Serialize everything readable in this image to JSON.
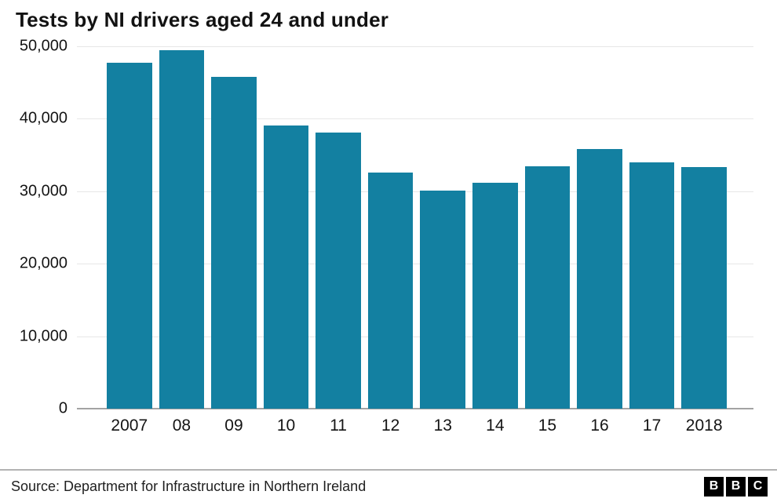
{
  "title": "Tests by NI drivers aged 24 and under",
  "source": "Source: Department for Infrastructure in Northern Ireland",
  "logo": {
    "letters": [
      "B",
      "B",
      "C"
    ]
  },
  "colors": {
    "bar": "#1380A1",
    "grid": "#e7e7e7",
    "baseline": "#a3a3a3",
    "text": "#141414"
  },
  "chart_data": {
    "type": "bar",
    "title": "Tests by NI drivers aged 24 and under",
    "categories": [
      "2007",
      "08",
      "09",
      "10",
      "11",
      "12",
      "13",
      "14",
      "15",
      "16",
      "17",
      "2018"
    ],
    "values": [
      47700,
      49500,
      45800,
      39100,
      38100,
      32600,
      30100,
      31200,
      33400,
      35800,
      34000,
      33300
    ],
    "xlabel": "",
    "ylabel": "",
    "ylim": [
      0,
      50000
    ],
    "yticks": [
      0,
      10000,
      20000,
      30000,
      40000,
      50000
    ],
    "ytick_labels": [
      "0",
      "10,000",
      "20,000",
      "30,000",
      "40,000",
      "50,000"
    ],
    "grid": true,
    "legend": false,
    "bar_color": "#1380A1"
  }
}
